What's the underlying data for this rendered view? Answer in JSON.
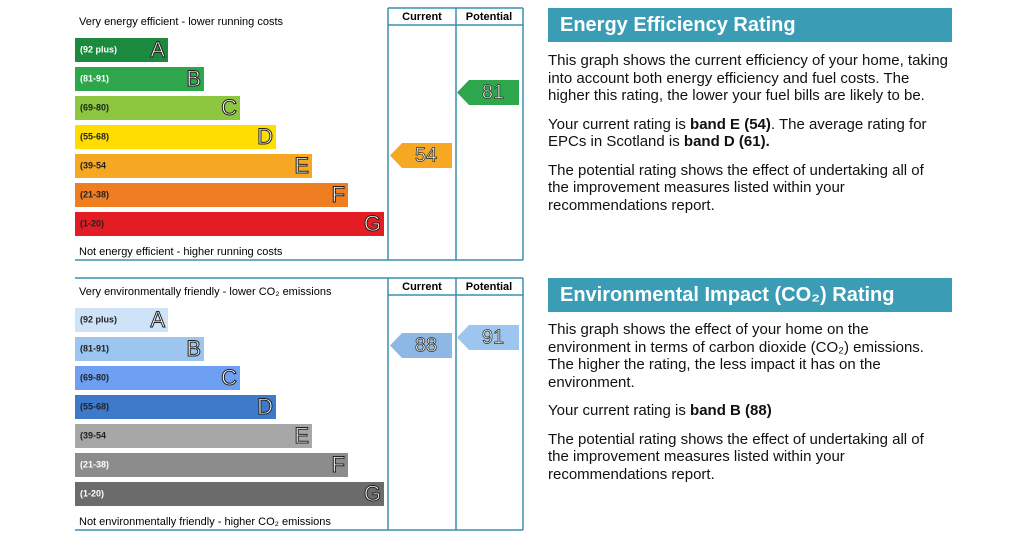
{
  "energy": {
    "top_note": "Very energy efficient - lower running costs",
    "bottom_note": "Not energy efficient - higher running costs",
    "headers": [
      "Current",
      "Potential"
    ],
    "bands": [
      {
        "range": "(92 plus)",
        "letter": "A",
        "color": "#1b8a3e",
        "text_color": "#ffffff"
      },
      {
        "range": "(81-91)",
        "letter": "B",
        "color": "#2ea64b",
        "text_color": "#ffffff"
      },
      {
        "range": "(69-80)",
        "letter": "C",
        "color": "#8dc63f",
        "text_color": "#222222"
      },
      {
        "range": "(55-68)",
        "letter": "D",
        "color": "#ffdd00",
        "text_color": "#222222"
      },
      {
        "range": "(39-54",
        "letter": "E",
        "color": "#f7a823",
        "text_color": "#222222"
      },
      {
        "range": "(21-38)",
        "letter": "F",
        "color": "#ef7d22",
        "text_color": "#222222"
      },
      {
        "range": "(1-20)",
        "letter": "G",
        "color": "#e31d23",
        "text_color": "#222222"
      }
    ],
    "current": 54,
    "current_color": "#f7a823",
    "potential": 81,
    "potential_color": "#2ea64b",
    "title": "Energy Efficiency Rating"
  },
  "environment": {
    "top_note": "Very environmentally friendly - lower CO₂ emissions",
    "bottom_note": "Not environmentally friendly - higher CO₂ emissions",
    "headers": [
      "Current",
      "Potential"
    ],
    "bands": [
      {
        "range": "(92 plus)",
        "letter": "A",
        "color": "#cfe3f8",
        "text_color": "#222222"
      },
      {
        "range": "(81-91)",
        "letter": "B",
        "color": "#9cc5ef",
        "text_color": "#222222"
      },
      {
        "range": "(69-80)",
        "letter": "C",
        "color": "#6d9ff2",
        "text_color": "#222222"
      },
      {
        "range": "(55-68)",
        "letter": "D",
        "color": "#3f79c9",
        "text_color": "#222222"
      },
      {
        "range": "(39-54",
        "letter": "E",
        "color": "#a7a7a7",
        "text_color": "#222222"
      },
      {
        "range": "(21-38)",
        "letter": "F",
        "color": "#8c8c8c",
        "text_color": "#ffffff"
      },
      {
        "range": "(1-20)",
        "letter": "G",
        "color": "#6b6b6b",
        "text_color": "#ffffff"
      }
    ],
    "current": 88,
    "current_color": "#8db8e6",
    "potential": 91,
    "potential_color": "#9cc5ef",
    "title": "Environmental Impact (CO₂) Rating"
  },
  "energy_text": {
    "p1": "This graph shows the current efficiency of your home, taking into account both energy efficiency and fuel costs. The higher this rating, the lower your fuel bills are likely to be.",
    "p2": [
      "Your current rating is ",
      "band E (54)",
      ". The average rating for EPCs in Scotland is ",
      "band D (61)."
    ],
    "p3": "The potential rating shows the effect of undertaking all of the improvement measures listed within your recommendations report."
  },
  "environment_text": {
    "p1": "This graph shows the effect of your home on the environment in terms of carbon dioxide (CO₂) emissions. The higher the rating, the less impact it has on the environment.",
    "p2": [
      "Your current rating is ",
      "band B (88)"
    ],
    "p3": "The potential rating shows the effect of undertaking all of the improvement measures listed within your recommendations report."
  }
}
